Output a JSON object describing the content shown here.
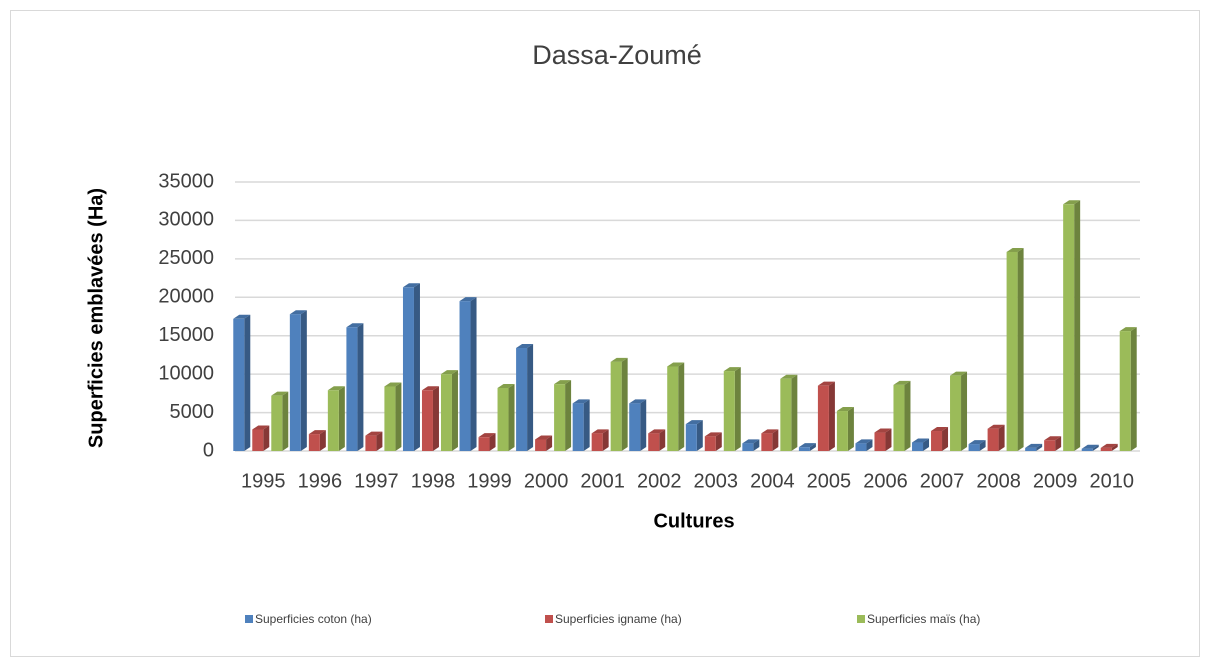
{
  "chart_data": {
    "type": "bar",
    "title": "Dassa-Zoumé",
    "x_label": "Cultures",
    "y_label": "Superficies emblavées (Ha)",
    "categories": [
      "1995",
      "1996",
      "1997",
      "1998",
      "1999",
      "2000",
      "2001",
      "2002",
      "2003",
      "2004",
      "2005",
      "2006",
      "2007",
      "2008",
      "2009",
      "2010"
    ],
    "series": [
      {
        "name": "Superficies coton (ha)",
        "color": "#4f81bd",
        "values": [
          17200,
          17800,
          16100,
          21300,
          19500,
          13400,
          6200,
          6200,
          3500,
          1000,
          500,
          1000,
          1100,
          900,
          400,
          300
        ]
      },
      {
        "name": "Superficies igname (ha)",
        "color": "#c0504d",
        "values": [
          2800,
          2200,
          2000,
          7900,
          1800,
          1500,
          2300,
          2300,
          1900,
          2300,
          8500,
          2400,
          2600,
          2900,
          1400,
          400
        ]
      },
      {
        "name": "Superficies maïs (ha)",
        "color": "#9bbb59",
        "values": [
          7200,
          7900,
          8400,
          10000,
          8200,
          8700,
          11600,
          11000,
          10400,
          9400,
          5200,
          8600,
          9800,
          25900,
          32100,
          15600
        ]
      }
    ],
    "ylim": [
      0,
      35000
    ],
    "yticks": [
      0,
      5000,
      10000,
      15000,
      20000,
      25000,
      30000,
      35000
    ],
    "grid": true,
    "legend": "bottom"
  }
}
